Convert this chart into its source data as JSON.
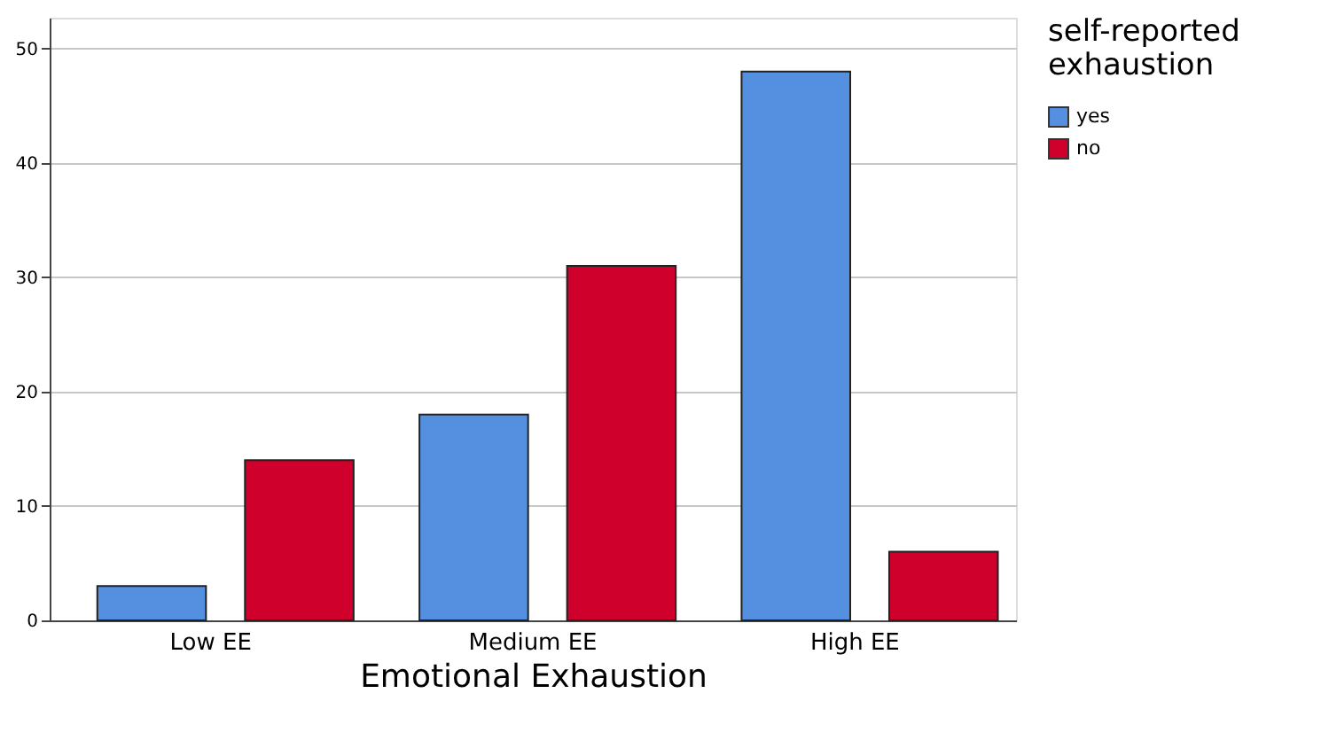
{
  "chart_data": {
    "type": "bar",
    "xlabel": "Emotional Exhaustion",
    "legend_title": "self-reported exhaustion",
    "categories": [
      "Low EE",
      "Medium EE",
      "High EE"
    ],
    "series": [
      {
        "name": "yes",
        "color": "#5590e0",
        "values": [
          3,
          18,
          48
        ]
      },
      {
        "name": "no",
        "color": "#d0002c",
        "values": [
          14,
          31,
          6
        ]
      }
    ],
    "ylim": [
      0,
      52.7
    ],
    "yticks": [
      0,
      10,
      20,
      30,
      40,
      50
    ],
    "grid": "y",
    "legend": "top right"
  }
}
